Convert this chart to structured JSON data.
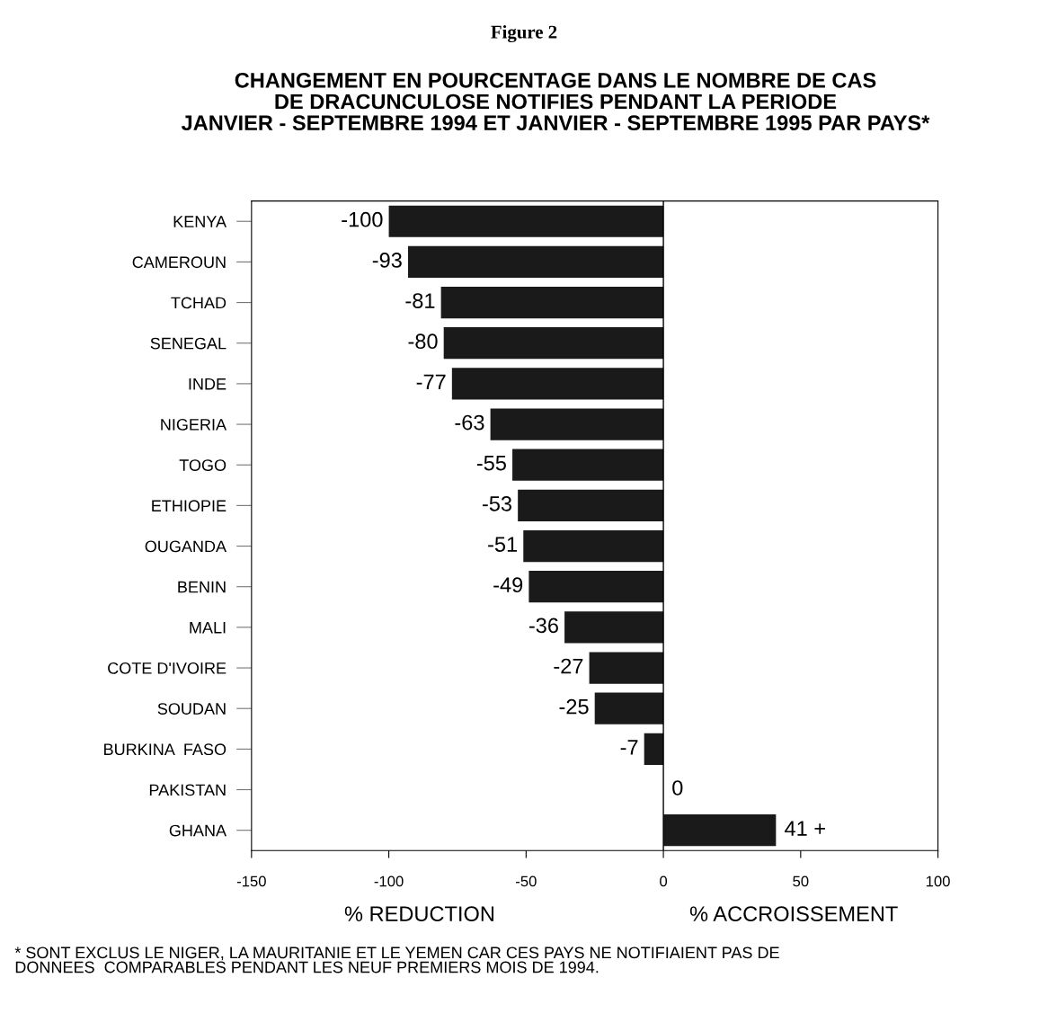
{
  "chart_data": {
    "type": "bar",
    "orientation": "horizontal",
    "title": "Figure 2",
    "subtitle": "CHANGEMENT EN POURCENTAGE DANS LE NOMBRE DE CAS\nDE DRACUNCULOSE NOTIFIES PENDANT LA PERIODE\nJANVIER - SEPTEMBRE 1994 ET JANVIER - SEPTEMBRE 1995 PAR PAYS*",
    "xlabel": "% REDUCTION",
    "categories": [
      "KENYA",
      "CAMEROUN",
      "TCHAD",
      "SENEGAL",
      "INDE",
      "NIGERIA",
      "TOGO",
      "ETHIOPIE",
      "OUGANDA",
      "BENIN",
      "MALI",
      "COTE D'IVOIRE",
      "SOUDAN",
      "BURKINA  FASO",
      "PAKISTAN",
      "GHANA"
    ],
    "values": [
      -100,
      -93,
      -81,
      -80,
      -77,
      -63,
      -55,
      -53,
      -51,
      -49,
      -36,
      -27,
      -25,
      -7,
      0,
      41
    ],
    "value_labels": [
      "-100",
      "-93",
      "-81",
      "-80",
      "-77",
      "-63",
      "-55",
      "-53",
      "-51",
      "-49",
      "-36",
      "-27",
      "-25",
      "-7",
      "0",
      "41 +"
    ],
    "color": "#1a1a1a",
    "xlim": [
      -150,
      100
    ],
    "xticks": [
      -150,
      -100,
      -50,
      0,
      50,
      100
    ],
    "ref_lines": [
      {
        "axis": "x",
        "value": 0,
        "color": "#000000"
      }
    ],
    "annotations": [
      "% ACCROISSEMENT",
      "* SONT EXCLUS LE NIGER, LA MAURITANIE ET LE YEMEN CAR CES PAYS NE NOTIFIAIENT PAS DE\nDONNEES  COMPARABLES PENDANT LES NEUF PREMIERS MOIS DE 1994."
    ],
    "grid": false,
    "legend": false
  }
}
